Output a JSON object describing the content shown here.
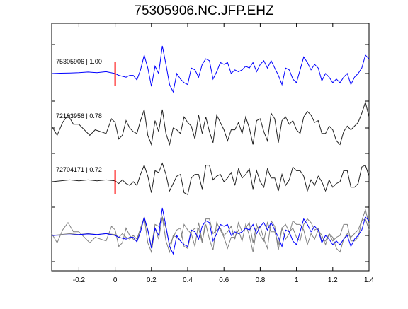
{
  "chart_data": {
    "type": "line",
    "title": "75305906.NC.JFP.EHZ",
    "xlabel": "",
    "ylabel": "",
    "xlim": [
      -0.35,
      1.4
    ],
    "x_ticks": [
      "-0.2",
      "0",
      "0.2",
      "0.4",
      "0.6",
      "0.8",
      "1",
      "1.2",
      "1.4"
    ],
    "x_tick_values": [
      -0.2,
      0,
      0.2,
      0.4,
      0.6,
      0.8,
      1.0,
      1.2,
      1.4
    ],
    "grid": false,
    "panels": [
      {
        "label": "75305906 | 1.00",
        "color": "#0000ff",
        "pick_time": 0.0,
        "x": [
          -0.35,
          -0.3,
          -0.25,
          -0.2,
          -0.15,
          -0.1,
          -0.05,
          0.0,
          0.02,
          0.04,
          0.06,
          0.08,
          0.1,
          0.12,
          0.14,
          0.16,
          0.18,
          0.2,
          0.22,
          0.24,
          0.26,
          0.28,
          0.3,
          0.32,
          0.34,
          0.36,
          0.38,
          0.4,
          0.42,
          0.44,
          0.46,
          0.48,
          0.5,
          0.52,
          0.54,
          0.56,
          0.58,
          0.6,
          0.62,
          0.64,
          0.66,
          0.68,
          0.7,
          0.72,
          0.74,
          0.76,
          0.78,
          0.8,
          0.82,
          0.84,
          0.86,
          0.88,
          0.9,
          0.92,
          0.94,
          0.96,
          0.98,
          1.0,
          1.02,
          1.04,
          1.06,
          1.08,
          1.1,
          1.12,
          1.14,
          1.16,
          1.18,
          1.2,
          1.22,
          1.24,
          1.26,
          1.28,
          1.3,
          1.32,
          1.34,
          1.36,
          1.38,
          1.4
        ],
        "y": [
          0,
          0.02,
          0.03,
          0.05,
          0.08,
          0.05,
          0.1,
          0,
          -0.1,
          -0.15,
          -0.2,
          -0.1,
          -0.1,
          -0.35,
          0.2,
          1.0,
          0.3,
          -0.7,
          0.4,
          0,
          1.5,
          0.5,
          -0.6,
          -1.0,
          0,
          -0.3,
          -0.5,
          -0.6,
          0.3,
          0.2,
          -0.2,
          0.5,
          0.8,
          0.7,
          -0.3,
          0.1,
          0.6,
          0.5,
          0.6,
          0,
          0.2,
          0.1,
          0.2,
          0.4,
          0.3,
          0.6,
          0.1,
          0.5,
          0.7,
          0.3,
          0.7,
          0.3,
          -0.1,
          -0.6,
          0.3,
          0.2,
          -0.3,
          -0.5,
          0.2,
          0.9,
          0.6,
          0.2,
          0.5,
          0.3,
          -0.4,
          0,
          -0.2,
          -0.5,
          -0.3,
          -0.5,
          -0.2,
          0,
          -0.6,
          -0.2,
          0,
          0.3,
          1.0,
          0.8
        ]
      },
      {
        "label": "72103956 | 0.78",
        "color": "#222222",
        "x": [
          -0.35,
          -0.32,
          -0.29,
          -0.26,
          -0.23,
          -0.2,
          -0.17,
          -0.14,
          -0.11,
          -0.08,
          -0.05,
          -0.02,
          0.0,
          0.02,
          0.04,
          0.06,
          0.08,
          0.1,
          0.12,
          0.14,
          0.16,
          0.18,
          0.2,
          0.22,
          0.24,
          0.26,
          0.28,
          0.3,
          0.32,
          0.34,
          0.36,
          0.38,
          0.4,
          0.42,
          0.44,
          0.46,
          0.48,
          0.5,
          0.52,
          0.54,
          0.56,
          0.58,
          0.6,
          0.62,
          0.64,
          0.66,
          0.68,
          0.7,
          0.72,
          0.74,
          0.76,
          0.78,
          0.8,
          0.82,
          0.84,
          0.86,
          0.88,
          0.9,
          0.92,
          0.94,
          0.96,
          0.98,
          1.0,
          1.02,
          1.04,
          1.06,
          1.08,
          1.1,
          1.12,
          1.14,
          1.16,
          1.18,
          1.2,
          1.22,
          1.24,
          1.26,
          1.28,
          1.3,
          1.32,
          1.34,
          1.36,
          1.38,
          1.4
        ],
        "y": [
          0.1,
          -0.4,
          0.3,
          0.7,
          0.2,
          0.2,
          -0.1,
          -0.4,
          -0.1,
          -0.2,
          -0.3,
          0.5,
          0.3,
          -0.6,
          -0.4,
          0.4,
          0,
          -0.2,
          -0.3,
          0.4,
          1.0,
          -0.4,
          -0.9,
          0.4,
          -0.2,
          1.0,
          -0.3,
          -0.9,
          0,
          -0.1,
          -0.3,
          0.6,
          0.3,
          0.1,
          -0.6,
          0.7,
          -0.3,
          0.6,
          -0.2,
          -0.8,
          0.7,
          0.3,
          -0.1,
          -0.7,
          -0.1,
          -0.1,
          0.3,
          -0.3,
          0.6,
          0,
          -0.9,
          0.4,
          0.5,
          -0.2,
          -0.7,
          0.8,
          0.5,
          -0.8,
          0.4,
          0.6,
          0.2,
          0.4,
          -0.1,
          -0.3,
          0.6,
          0.9,
          0.7,
          0.3,
          0.4,
          -0.3,
          -0.3,
          0.1,
          -0.1,
          -0.7,
          -0.9,
          -0.2,
          0.1,
          -0.1,
          0.1,
          0.3,
          0.8,
          1.4,
          0.6
        ]
      },
      {
        "label": "72704171 | 0.72",
        "color": "#222222",
        "pick_time": 0.0,
        "x": [
          -0.35,
          -0.3,
          -0.25,
          -0.2,
          -0.15,
          -0.1,
          -0.05,
          0.0,
          0.02,
          0.04,
          0.06,
          0.08,
          0.1,
          0.12,
          0.14,
          0.16,
          0.18,
          0.2,
          0.22,
          0.24,
          0.26,
          0.28,
          0.3,
          0.32,
          0.34,
          0.36,
          0.38,
          0.4,
          0.42,
          0.44,
          0.46,
          0.48,
          0.5,
          0.52,
          0.54,
          0.56,
          0.58,
          0.6,
          0.62,
          0.64,
          0.66,
          0.68,
          0.7,
          0.72,
          0.74,
          0.76,
          0.78,
          0.8,
          0.82,
          0.84,
          0.86,
          0.88,
          0.9,
          0.92,
          0.94,
          0.96,
          0.98,
          1.0,
          1.02,
          1.04,
          1.06,
          1.08,
          1.1,
          1.12,
          1.14,
          1.16,
          1.18,
          1.2,
          1.22,
          1.24,
          1.26,
          1.28,
          1.3,
          1.32,
          1.34,
          1.36,
          1.38,
          1.4
        ],
        "y": [
          0,
          0.05,
          0.1,
          0.05,
          0.1,
          0.05,
          0.1,
          0.05,
          -0.1,
          0.1,
          -0.1,
          -0.2,
          0,
          -0.2,
          0.4,
          0.9,
          0.3,
          -0.6,
          0.6,
          0.5,
          1.0,
          0.4,
          -0.5,
          -0.1,
          0.3,
          0.4,
          -0.6,
          -0.7,
          0.2,
          0.4,
          0.4,
          -0.4,
          0.9,
          0.9,
          0.1,
          0.3,
          0.4,
          0,
          0.2,
          0.5,
          -0.2,
          0.7,
          0.2,
          0.4,
          0.7,
          -0.4,
          0.6,
          0,
          -0.3,
          0.7,
          0.2,
          0.2,
          -0.5,
          0.4,
          -0.2,
          0.1,
          0.8,
          0.6,
          0.6,
          0.3,
          -0.5,
          0.1,
          -0.2,
          0.3,
          0,
          -0.5,
          0.1,
          -0.3,
          -0.1,
          0,
          0.6,
          0.6,
          -0.3,
          -0.3,
          -0.1,
          0.8,
          0.9,
          0.3
        ]
      }
    ]
  }
}
